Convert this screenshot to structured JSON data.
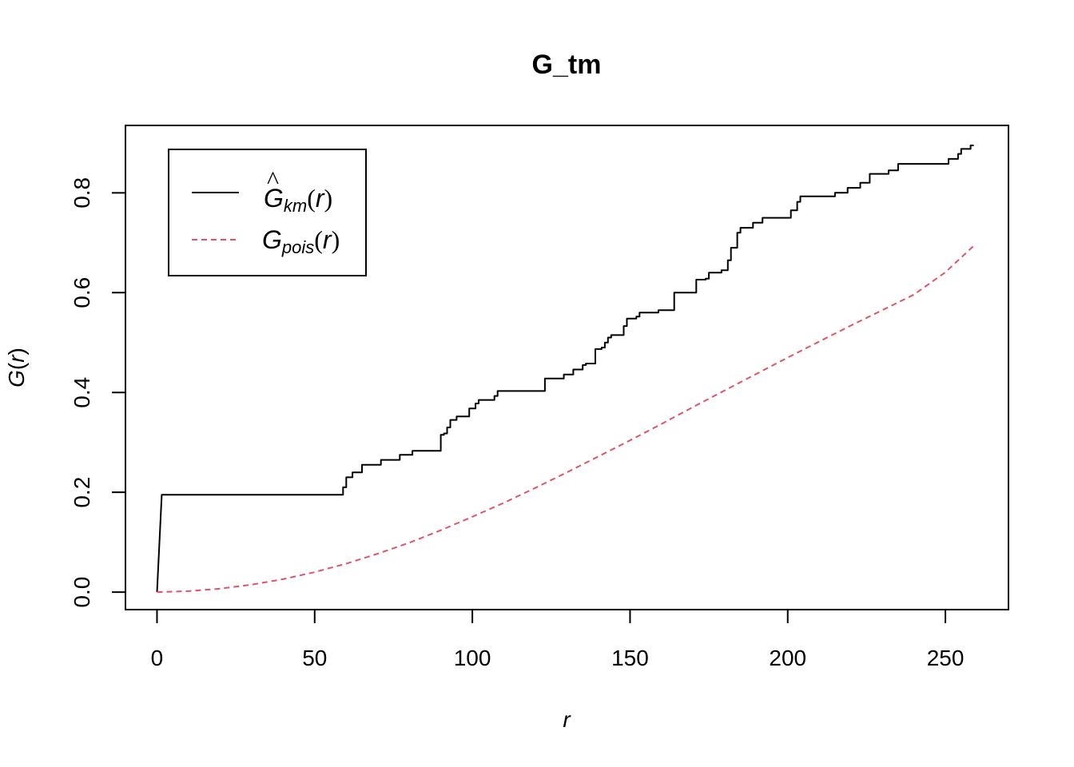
{
  "chart_data": {
    "type": "line",
    "title": "G_tm",
    "xlabel": "r",
    "ylabel_base": "G",
    "ylabel_arg": "r",
    "xlim": [
      -10,
      270
    ],
    "ylim": [
      -0.035,
      0.935
    ],
    "x_ticks": [
      0,
      50,
      100,
      150,
      200,
      250
    ],
    "x_tick_labels": [
      "0",
      "50",
      "100",
      "150",
      "200",
      "250"
    ],
    "y_ticks": [
      0.0,
      0.2,
      0.4,
      0.6,
      0.8
    ],
    "y_tick_labels": [
      "0.0",
      "0.2",
      "0.4",
      "0.6",
      "0.8"
    ],
    "grid": false,
    "legend_position": "top-left",
    "legend": {
      "km": {
        "hat": "^",
        "base": "G",
        "sub": "km",
        "open": "(",
        "arg": "r",
        "close": ")"
      },
      "pois": {
        "base": "G",
        "sub": "pois",
        "open": "(",
        "arg": "r",
        "close": ")"
      }
    },
    "series": [
      {
        "key": "km",
        "style": "solid",
        "color": "#000000",
        "type": "step",
        "x": [
          0,
          1.5,
          57,
          59,
          60,
          62,
          64,
          65,
          70,
          71,
          76,
          77,
          80,
          81,
          89,
          90,
          91,
          92,
          93,
          95,
          98,
          99,
          100,
          101,
          102,
          103,
          104,
          107,
          108,
          122,
          123,
          128,
          129,
          131,
          132,
          135,
          136,
          138,
          139,
          141,
          142,
          143,
          144,
          145,
          148,
          149,
          150,
          152,
          153,
          158,
          159,
          163,
          164,
          170,
          171,
          174,
          175,
          178,
          179,
          181,
          182,
          184,
          185,
          188,
          189,
          191,
          192,
          200,
          201,
          203,
          204,
          214,
          215,
          218,
          219,
          222,
          223,
          225,
          226,
          231,
          232,
          234,
          235,
          250,
          251,
          254,
          255,
          257,
          258,
          259
        ],
        "y": [
          0.0,
          0.195,
          0.195,
          0.21,
          0.23,
          0.24,
          0.24,
          0.255,
          0.255,
          0.265,
          0.265,
          0.275,
          0.275,
          0.283,
          0.283,
          0.315,
          0.318,
          0.33,
          0.345,
          0.352,
          0.352,
          0.368,
          0.368,
          0.378,
          0.385,
          0.385,
          0.385,
          0.393,
          0.403,
          0.403,
          0.428,
          0.428,
          0.436,
          0.436,
          0.446,
          0.455,
          0.458,
          0.458,
          0.487,
          0.49,
          0.5,
          0.51,
          0.515,
          0.515,
          0.533,
          0.548,
          0.548,
          0.552,
          0.56,
          0.56,
          0.565,
          0.565,
          0.6,
          0.6,
          0.626,
          0.628,
          0.64,
          0.64,
          0.645,
          0.665,
          0.69,
          0.72,
          0.73,
          0.73,
          0.74,
          0.74,
          0.75,
          0.75,
          0.765,
          0.782,
          0.793,
          0.793,
          0.8,
          0.8,
          0.81,
          0.81,
          0.82,
          0.82,
          0.838,
          0.838,
          0.845,
          0.845,
          0.858,
          0.858,
          0.868,
          0.878,
          0.888,
          0.888,
          0.895,
          0.895
        ]
      },
      {
        "key": "pois",
        "style": "dashed",
        "color": "#DF536B",
        "type": "line",
        "x": [
          0,
          10,
          20,
          30,
          40,
          50,
          60,
          70,
          80,
          90,
          100,
          110,
          120,
          130,
          140,
          150,
          160,
          170,
          180,
          190,
          200,
          210,
          220,
          230,
          240,
          250,
          259
        ],
        "y": [
          0.0,
          0.002,
          0.007,
          0.015,
          0.026,
          0.04,
          0.057,
          0.077,
          0.099,
          0.124,
          0.151,
          0.179,
          0.209,
          0.24,
          0.272,
          0.304,
          0.337,
          0.371,
          0.404,
          0.437,
          0.47,
          0.502,
          0.534,
          0.565,
          0.596,
          0.641,
          0.694
        ]
      }
    ]
  }
}
